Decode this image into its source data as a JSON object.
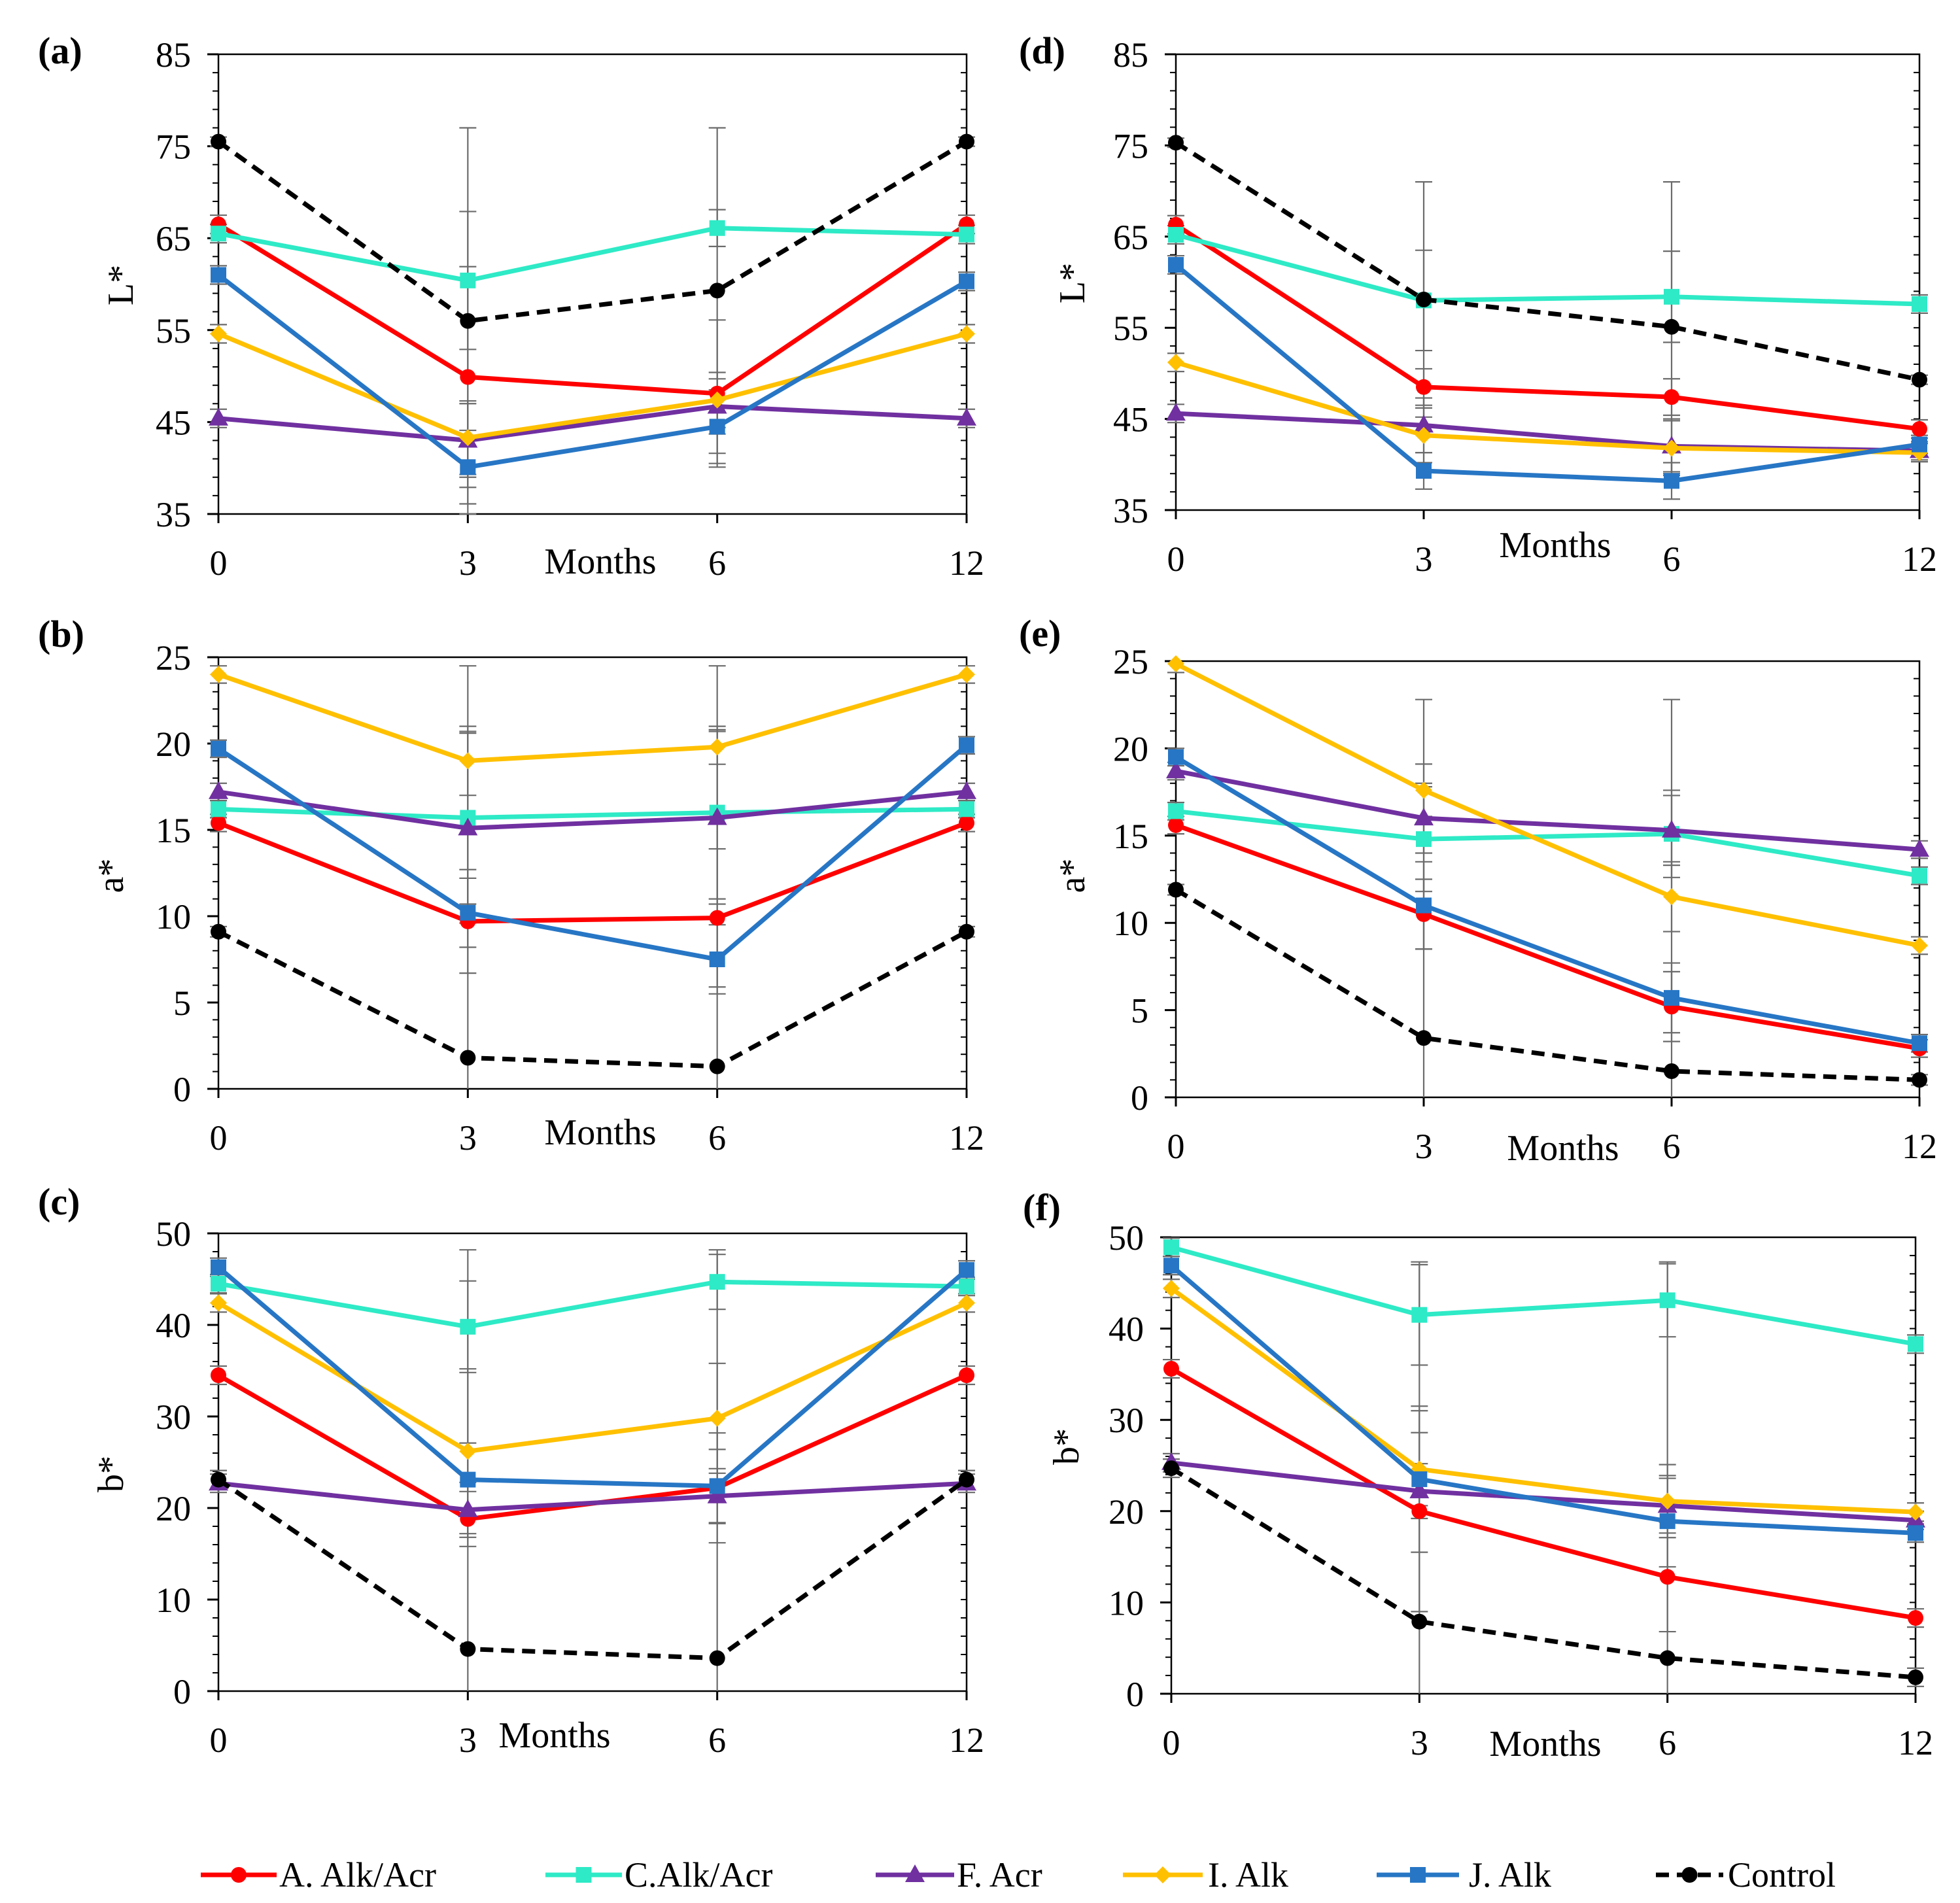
{
  "errorbar_color": "#6b6b6b",
  "legend": [
    {
      "label": "A. Alk/Acr",
      "color": "#ff0000",
      "marker": "circle",
      "dashed": false
    },
    {
      "label": "C.Alk/Acr",
      "color": "#2eeac6",
      "marker": "square",
      "dashed": false
    },
    {
      "label": "F. Acr",
      "color": "#7030a0",
      "marker": "triangle",
      "dashed": false
    },
    {
      "label": "I. Alk",
      "color": "#ffc000",
      "marker": "diamond",
      "dashed": false
    },
    {
      "label": "J. Alk",
      "color": "#2776c5",
      "marker": "square",
      "dashed": false
    },
    {
      "label": "Control",
      "color": "#000000",
      "marker": "circle",
      "dashed": true
    }
  ],
  "chart_data": [
    {
      "panel_label": "(a)",
      "type": "line",
      "xlabel": "Months",
      "ylabel": "L*",
      "categories": [
        "0",
        "3",
        "6",
        "12"
      ],
      "ylim": [
        35,
        85
      ],
      "yticks": [
        35,
        45,
        55,
        65,
        75,
        85
      ],
      "yminor": 2,
      "series": [
        {
          "name": "A. Alk/Acr",
          "values": [
            66.5,
            49.9,
            48.1,
            66.5
          ],
          "errors": [
            1,
            12,
            8,
            1
          ]
        },
        {
          "name": "C.Alk/Acr",
          "values": [
            65.5,
            60.4,
            66.1,
            65.4
          ],
          "errors": [
            1,
            7.5,
            2,
            1
          ]
        },
        {
          "name": "F. Acr",
          "values": [
            45.4,
            43.0,
            46.7,
            45.4
          ],
          "errors": [
            1,
            4,
            3,
            1
          ]
        },
        {
          "name": "I. Alk",
          "values": [
            54.6,
            43.3,
            47.4,
            54.6
          ],
          "errors": [
            1,
            4,
            3,
            1
          ]
        },
        {
          "name": "J. Alk",
          "values": [
            61.0,
            40.1,
            44.5,
            60.3
          ],
          "errors": [
            1,
            4,
            4,
            1
          ]
        },
        {
          "name": "Control",
          "values": [
            75.5,
            56.0,
            59.3,
            75.5
          ],
          "errors": [
            0.5,
            21,
            17.7,
            0.5
          ]
        }
      ]
    },
    {
      "panel_label": "(b)",
      "type": "line",
      "xlabel": "Months",
      "ylabel": "a*",
      "categories": [
        "0",
        "3",
        "6",
        "12"
      ],
      "ylim": [
        0,
        25
      ],
      "yticks": [
        0,
        5,
        10,
        15,
        20,
        25
      ],
      "yminor": 1,
      "series": [
        {
          "name": "A. Alk/Acr",
          "values": [
            15.4,
            9.7,
            9.9,
            15.4
          ],
          "errors": [
            0.5,
            3,
            4,
            0.5
          ]
        },
        {
          "name": "C.Alk/Acr",
          "values": [
            16.2,
            15.7,
            16.0,
            16.2
          ],
          "errors": [
            0.5,
            5,
            5,
            0.5
          ]
        },
        {
          "name": "F. Acr",
          "values": [
            17.2,
            15.1,
            15.7,
            17.2
          ],
          "errors": [
            0.5,
            5.5,
            5,
            0.5
          ]
        },
        {
          "name": "I. Alk",
          "values": [
            24.0,
            19.0,
            19.8,
            24.0
          ],
          "errors": [
            0.5,
            2,
            1,
            0.5
          ]
        },
        {
          "name": "J. Alk",
          "values": [
            19.7,
            10.2,
            7.5,
            19.9
          ],
          "errors": [
            0.5,
            2,
            2,
            0.5
          ]
        },
        {
          "name": "Control",
          "values": [
            9.1,
            1.8,
            1.3,
            9.1
          ],
          "errors": [
            0.3,
            22.7,
            23.2,
            0.3
          ]
        }
      ]
    },
    {
      "panel_label": "(c)",
      "type": "line",
      "xlabel": "Months",
      "ylabel": "b*",
      "categories": [
        "0",
        "3",
        "6",
        "12"
      ],
      "ylim": [
        0,
        50
      ],
      "yticks": [
        0,
        10,
        20,
        30,
        40,
        50
      ],
      "yminor": 2,
      "series": [
        {
          "name": "A. Alk/Acr",
          "values": [
            34.5,
            18.8,
            22.2,
            34.5
          ],
          "errors": [
            1,
            3,
            6,
            1
          ]
        },
        {
          "name": "C.Alk/Acr",
          "values": [
            44.5,
            39.8,
            44.7,
            44.2
          ],
          "errors": [
            1,
            5,
            3,
            1
          ]
        },
        {
          "name": "F. Acr",
          "values": [
            22.7,
            19.8,
            21.3,
            22.7
          ],
          "errors": [
            1,
            3,
            3,
            1
          ]
        },
        {
          "name": "I. Alk",
          "values": [
            42.4,
            26.2,
            29.8,
            42.4
          ],
          "errors": [
            1,
            9,
            6,
            1
          ]
        },
        {
          "name": "J. Alk",
          "values": [
            46.3,
            23.1,
            22.4,
            46.0
          ],
          "errors": [
            1,
            4,
            4,
            1
          ]
        },
        {
          "name": "Control",
          "values": [
            23.1,
            4.6,
            3.6,
            23.1
          ],
          "errors": [
            1,
            43.6,
            44.6,
            1
          ]
        }
      ]
    },
    {
      "panel_label": "(d)",
      "type": "line",
      "xlabel": "Months",
      "ylabel": "L*",
      "categories": [
        "0",
        "3",
        "6",
        "12"
      ],
      "ylim": [
        35,
        85
      ],
      "yticks": [
        35,
        45,
        55,
        65,
        75,
        85
      ],
      "yminor": 2,
      "series": [
        {
          "name": "A. Alk/Acr",
          "values": [
            66.3,
            48.5,
            47.4,
            43.9
          ],
          "errors": [
            1,
            2,
            2,
            1
          ]
        },
        {
          "name": "C.Alk/Acr",
          "values": [
            65.2,
            58.0,
            58.4,
            57.6
          ],
          "errors": [
            1,
            5.5,
            5,
            1
          ]
        },
        {
          "name": "F. Acr",
          "values": [
            45.6,
            44.3,
            42.0,
            41.5
          ],
          "errors": [
            1,
            3,
            3,
            1
          ]
        },
        {
          "name": "I. Alk",
          "values": [
            51.2,
            43.2,
            41.8,
            41.3
          ],
          "errors": [
            1,
            3,
            3,
            1
          ]
        },
        {
          "name": "J. Alk",
          "values": [
            61.9,
            39.3,
            38.2,
            42.2
          ],
          "errors": [
            1,
            2,
            2,
            1
          ]
        },
        {
          "name": "Control",
          "values": [
            75.3,
            58.1,
            55.1,
            49.3
          ],
          "errors": [
            0.5,
            12.9,
            15.9,
            0.5
          ]
        }
      ]
    },
    {
      "panel_label": "(e)",
      "type": "line",
      "xlabel": "Months",
      "ylabel": "a*",
      "categories": [
        "0",
        "3",
        "6",
        "12"
      ],
      "ylim": [
        0,
        25
      ],
      "yticks": [
        0,
        5,
        10,
        15,
        20,
        25
      ],
      "yminor": 1,
      "series": [
        {
          "name": "A. Alk/Acr",
          "values": [
            15.6,
            10.5,
            5.2,
            2.8
          ],
          "errors": [
            0.5,
            2,
            2,
            0.5
          ]
        },
        {
          "name": "C.Alk/Acr",
          "values": [
            16.4,
            14.8,
            15.1,
            12.7
          ],
          "errors": [
            0.5,
            3,
            2.5,
            0.5
          ]
        },
        {
          "name": "F. Acr",
          "values": [
            18.7,
            16.0,
            15.3,
            14.2
          ],
          "errors": [
            0.5,
            2,
            2,
            0.5
          ]
        },
        {
          "name": "I. Alk",
          "values": [
            24.85,
            17.6,
            11.5,
            8.7
          ],
          "errors": [
            0.5,
            1.5,
            2,
            0.5
          ]
        },
        {
          "name": "J. Alk",
          "values": [
            19.5,
            11.0,
            5.7,
            3.1
          ],
          "errors": [
            0.5,
            2.5,
            2,
            0.5
          ]
        },
        {
          "name": "Control",
          "values": [
            11.9,
            3.4,
            1.5,
            1.0
          ],
          "errors": [
            0.3,
            19.4,
            21.3,
            0.3
          ]
        }
      ]
    },
    {
      "panel_label": "(f)",
      "type": "line",
      "xlabel": "Months",
      "ylabel": "b*",
      "categories": [
        "0",
        "3",
        "6",
        "12"
      ],
      "ylim": [
        0,
        50
      ],
      "yticks": [
        0,
        10,
        20,
        30,
        40,
        50
      ],
      "yminor": 2,
      "series": [
        {
          "name": "A. Alk/Acr",
          "values": [
            35.6,
            20.0,
            12.8,
            8.3
          ],
          "errors": [
            1,
            11,
            6,
            1
          ]
        },
        {
          "name": "C.Alk/Acr",
          "values": [
            48.9,
            41.5,
            43.1,
            38.3
          ],
          "errors": [
            1,
            5.5,
            4,
            1
          ]
        },
        {
          "name": "F. Acr",
          "values": [
            25.3,
            22.2,
            20.6,
            19.0
          ],
          "errors": [
            1,
            3,
            3,
            1
          ]
        },
        {
          "name": "I. Alk",
          "values": [
            44.4,
            24.6,
            21.1,
            19.9
          ],
          "errors": [
            1,
            4,
            4,
            1
          ]
        },
        {
          "name": "J. Alk",
          "values": [
            46.9,
            23.5,
            18.9,
            17.6
          ],
          "errors": [
            1,
            8,
            5,
            1
          ]
        },
        {
          "name": "Control",
          "values": [
            24.7,
            7.9,
            3.9,
            1.8
          ],
          "errors": [
            1,
            39.4,
            43.4,
            1
          ]
        }
      ]
    }
  ]
}
